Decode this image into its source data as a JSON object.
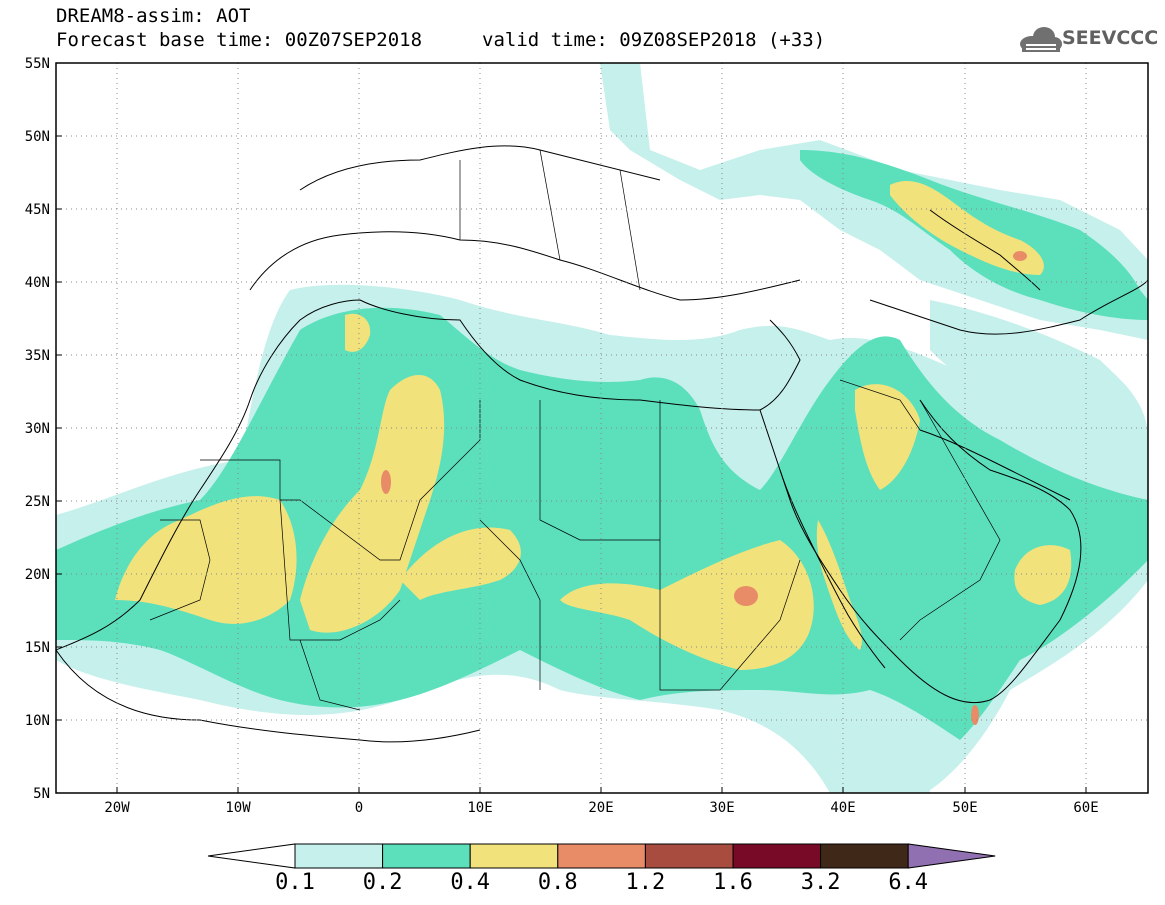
{
  "header": {
    "title": "DREAM8-assim: AOT",
    "base_time": "Forecast base time: 00Z07SEP2018",
    "valid_time": "valid time: 09Z08SEP2018 (+33)",
    "logo_text": "SEEVCCC",
    "logo_icon": "cloud-icon"
  },
  "map": {
    "lat_ticks": [
      "55N",
      "50N",
      "45N",
      "40N",
      "35N",
      "30N",
      "25N",
      "20N",
      "15N",
      "10N",
      "5N"
    ],
    "lon_ticks": [
      "20W",
      "10W",
      "0",
      "10E",
      "20E",
      "30E",
      "40E",
      "50E",
      "60E"
    ],
    "lat_range": [
      5,
      55
    ],
    "lon_range": [
      -25,
      65
    ],
    "grid": "dotted"
  },
  "colorbar": {
    "levels": [
      "0.1",
      "0.2",
      "0.4",
      "0.8",
      "1.2",
      "1.6",
      "3.2",
      "6.4"
    ],
    "colors": [
      "#ffffff",
      "#c6f0ec",
      "#5ce0bc",
      "#f2e27c",
      "#e88c68",
      "#a84c40",
      "#780a28",
      "#402818",
      "#9070b0"
    ]
  }
}
